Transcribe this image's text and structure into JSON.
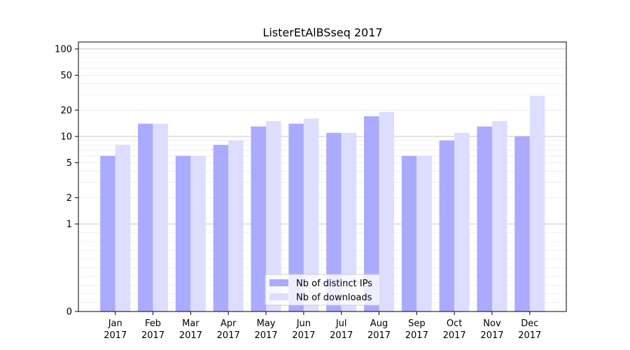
{
  "chart_data": {
    "type": "bar",
    "title": "ListerEtAlBSseq 2017",
    "xlabel": "",
    "ylabel": "",
    "y_scale": "symlog",
    "ylim": [
      0,
      120
    ],
    "yticks": [
      0,
      1,
      2,
      5,
      10,
      20,
      50,
      100
    ],
    "categories": [
      "Jan\n2017",
      "Feb\n2017",
      "Mar\n2017",
      "Apr\n2017",
      "May\n2017",
      "Jun\n2017",
      "Jul\n2017",
      "Aug\n2017",
      "Sep\n2017",
      "Oct\n2017",
      "Nov\n2017",
      "Dec\n2017"
    ],
    "series": [
      {
        "name": "Nb of distinct IPs",
        "color": "#aaaaff",
        "values": [
          6,
          14,
          6,
          8,
          13,
          14,
          11,
          17,
          6,
          9,
          13,
          10
        ]
      },
      {
        "name": "Nb of downloads",
        "color": "#ddddff",
        "values": [
          8,
          14,
          6,
          9,
          15,
          16,
          11,
          19,
          6,
          11,
          15,
          29
        ]
      }
    ],
    "grid": true,
    "legend_position": "bottom-center"
  }
}
